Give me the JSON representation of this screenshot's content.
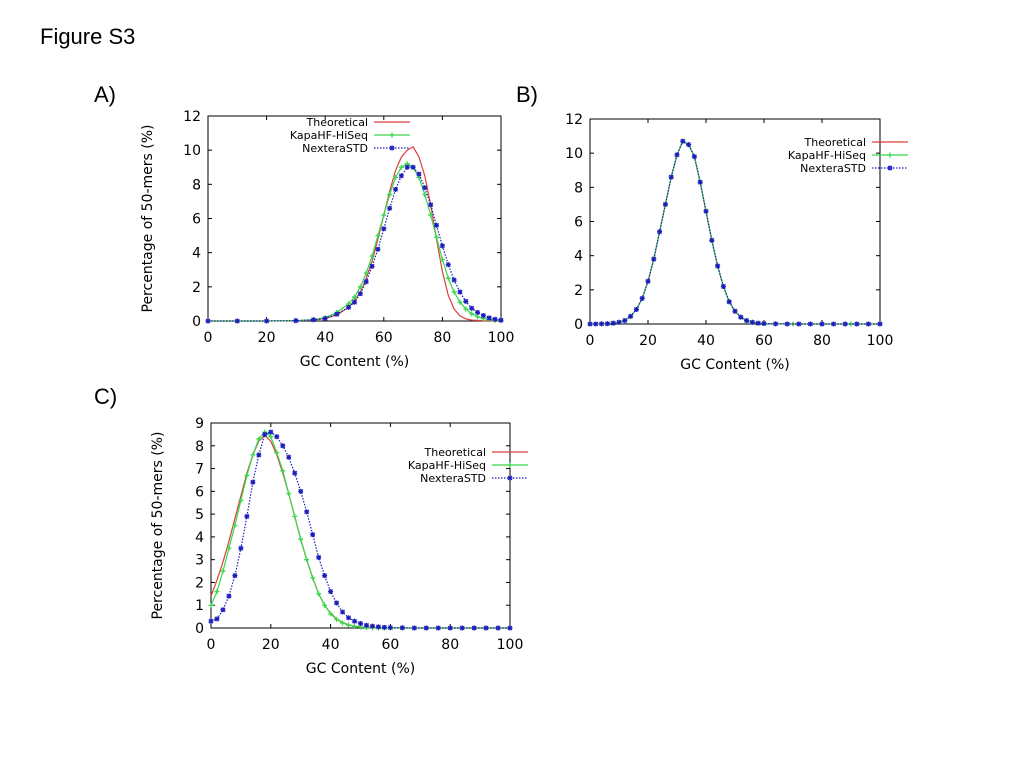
{
  "figure": {
    "title": "Figure S3",
    "panels": [
      "A)",
      "B)",
      "C)"
    ]
  },
  "colors": {
    "theoretical": "#d9403a",
    "kapa": "#37d84a",
    "nextera": "#1d1dbd"
  },
  "chart_data": [
    {
      "type": "line",
      "panel": "A)",
      "xlabel": "GC Content (%)",
      "ylabel": "Percentage of 50-mers (%)",
      "xlim": [
        0,
        100
      ],
      "ylim": [
        0,
        12
      ],
      "xticks": [
        "0",
        "20",
        "40",
        "60",
        "80",
        "100"
      ],
      "yticks": [
        "0",
        "2",
        "4",
        "6",
        "8",
        "10",
        "12"
      ],
      "legend": [
        "Theoretical",
        "KapaHF-HiSeq",
        "NexteraSTD"
      ],
      "series": [
        {
          "name": "Theoretical",
          "x": [
            0,
            10,
            20,
            30,
            36,
            40,
            44,
            48,
            50,
            52,
            54,
            56,
            58,
            60,
            62,
            64,
            66,
            68,
            70,
            72,
            74,
            76,
            78,
            80,
            82,
            84,
            86,
            88,
            90,
            94,
            100
          ],
          "y": [
            0,
            0,
            0,
            0.02,
            0.06,
            0.15,
            0.35,
            0.8,
            1.2,
            1.7,
            2.5,
            3.5,
            4.8,
            6.2,
            7.6,
            8.8,
            9.6,
            10.0,
            10.2,
            9.6,
            8.5,
            6.8,
            4.8,
            2.9,
            1.5,
            0.7,
            0.3,
            0.12,
            0.05,
            0.02,
            0
          ]
        },
        {
          "name": "KapaHF-HiSeq",
          "x": [
            0,
            10,
            20,
            30,
            36,
            40,
            44,
            48,
            50,
            52,
            54,
            56,
            58,
            60,
            62,
            64,
            66,
            68,
            70,
            72,
            74,
            76,
            78,
            80,
            82,
            84,
            86,
            88,
            90,
            92,
            94,
            96,
            98,
            100
          ],
          "y": [
            0,
            0,
            0,
            0.02,
            0.08,
            0.2,
            0.5,
            1.0,
            1.4,
            2.0,
            2.8,
            3.8,
            5.0,
            6.2,
            7.4,
            8.4,
            9.0,
            9.2,
            9.0,
            8.4,
            7.4,
            6.2,
            4.9,
            3.6,
            2.5,
            1.7,
            1.1,
            0.7,
            0.42,
            0.25,
            0.14,
            0.08,
            0.04,
            0.02
          ]
        },
        {
          "name": "NexteraSTD",
          "x": [
            0,
            10,
            20,
            30,
            36,
            40,
            44,
            48,
            50,
            52,
            54,
            56,
            58,
            60,
            62,
            64,
            66,
            68,
            70,
            72,
            74,
            76,
            78,
            80,
            82,
            84,
            86,
            88,
            90,
            92,
            94,
            96,
            98,
            100
          ],
          "y": [
            0,
            0,
            0,
            0.02,
            0.07,
            0.15,
            0.4,
            0.8,
            1.1,
            1.6,
            2.3,
            3.2,
            4.2,
            5.4,
            6.6,
            7.7,
            8.5,
            9.0,
            9.0,
            8.6,
            7.8,
            6.8,
            5.6,
            4.4,
            3.3,
            2.4,
            1.7,
            1.15,
            0.75,
            0.5,
            0.32,
            0.18,
            0.1,
            0.05
          ]
        }
      ]
    },
    {
      "type": "line",
      "panel": "B)",
      "xlabel": "GC Content (%)",
      "ylabel": "",
      "xlim": [
        0,
        100
      ],
      "ylim": [
        0,
        12
      ],
      "xticks": [
        "0",
        "20",
        "40",
        "60",
        "80",
        "100"
      ],
      "yticks": [
        "0",
        "2",
        "4",
        "6",
        "8",
        "10",
        "12"
      ],
      "legend": [
        "Theoretical",
        "KapaHF-HiSeq",
        "NexteraSTD"
      ],
      "series": [
        {
          "name": "Theoretical",
          "x": [
            0,
            4,
            8,
            10,
            12,
            14,
            16,
            18,
            20,
            22,
            24,
            26,
            28,
            30,
            32,
            34,
            36,
            38,
            40,
            42,
            44,
            46,
            48,
            50,
            52,
            54,
            56,
            60,
            70,
            80,
            90,
            100
          ],
          "y": [
            0,
            0.01,
            0.05,
            0.1,
            0.2,
            0.45,
            0.85,
            1.5,
            2.5,
            3.8,
            5.4,
            7.0,
            8.6,
            9.9,
            10.7,
            10.5,
            9.8,
            8.3,
            6.6,
            4.9,
            3.4,
            2.2,
            1.3,
            0.75,
            0.4,
            0.2,
            0.1,
            0.03,
            0,
            0,
            0,
            0
          ]
        },
        {
          "name": "KapaHF-HiSeq",
          "x": [
            0,
            4,
            8,
            10,
            12,
            14,
            16,
            18,
            20,
            22,
            24,
            26,
            28,
            30,
            32,
            34,
            36,
            38,
            40,
            42,
            44,
            46,
            48,
            50,
            52,
            54,
            56,
            60,
            70,
            80,
            90,
            100
          ],
          "y": [
            0,
            0.01,
            0.05,
            0.1,
            0.2,
            0.45,
            0.85,
            1.5,
            2.5,
            3.8,
            5.4,
            7.0,
            8.6,
            9.9,
            10.7,
            10.5,
            9.8,
            8.3,
            6.6,
            4.9,
            3.4,
            2.2,
            1.3,
            0.75,
            0.4,
            0.2,
            0.1,
            0.03,
            0,
            0,
            0,
            0
          ]
        },
        {
          "name": "NexteraSTD",
          "x": [
            0,
            2,
            4,
            6,
            8,
            10,
            12,
            14,
            16,
            18,
            20,
            22,
            24,
            26,
            28,
            30,
            32,
            34,
            36,
            38,
            40,
            42,
            44,
            46,
            48,
            50,
            52,
            54,
            56,
            58,
            60,
            64,
            68,
            72,
            76,
            80,
            84,
            88,
            92,
            96,
            100
          ],
          "y": [
            0,
            0,
            0.01,
            0.02,
            0.05,
            0.1,
            0.2,
            0.45,
            0.85,
            1.5,
            2.5,
            3.8,
            5.4,
            7.0,
            8.6,
            9.9,
            10.7,
            10.5,
            9.8,
            8.3,
            6.6,
            4.9,
            3.4,
            2.2,
            1.3,
            0.75,
            0.4,
            0.2,
            0.1,
            0.05,
            0.03,
            0.01,
            0,
            0,
            0,
            0,
            0,
            0,
            0,
            0,
            0
          ]
        }
      ]
    },
    {
      "type": "line",
      "panel": "C)",
      "xlabel": "GC Content (%)",
      "ylabel": "Percentage of 50-mers (%)",
      "xlim": [
        0,
        100
      ],
      "ylim": [
        0,
        9
      ],
      "xticks": [
        "0",
        "20",
        "40",
        "60",
        "80",
        "100"
      ],
      "yticks": [
        "0",
        "1",
        "2",
        "3",
        "4",
        "5",
        "6",
        "7",
        "8",
        "9"
      ],
      "legend": [
        "Theoretical",
        "KapaHF-HiSeq",
        "NexteraSTD"
      ],
      "series": [
        {
          "name": "Theoretical",
          "x": [
            0,
            2,
            4,
            6,
            8,
            10,
            12,
            14,
            16,
            18,
            20,
            22,
            24,
            26,
            28,
            30,
            32,
            34,
            36,
            38,
            40,
            42,
            44,
            46,
            48,
            50,
            55,
            60,
            70,
            80,
            90,
            100
          ],
          "y": [
            1.4,
            2.1,
            2.9,
            3.8,
            4.8,
            5.8,
            6.8,
            7.6,
            8.2,
            8.45,
            8.2,
            7.6,
            6.8,
            5.9,
            4.9,
            3.9,
            3.0,
            2.2,
            1.5,
            1.0,
            0.65,
            0.4,
            0.24,
            0.14,
            0.08,
            0.05,
            0.02,
            0,
            0,
            0,
            0,
            0
          ]
        },
        {
          "name": "KapaHF-HiSeq",
          "x": [
            0,
            2,
            4,
            6,
            8,
            10,
            12,
            14,
            16,
            18,
            20,
            22,
            24,
            26,
            28,
            30,
            32,
            34,
            36,
            38,
            40,
            42,
            44,
            46,
            48,
            50,
            52,
            54,
            56,
            58,
            60,
            64,
            68,
            72,
            76,
            80,
            84,
            88,
            92,
            96,
            100
          ],
          "y": [
            1.0,
            1.6,
            2.5,
            3.5,
            4.5,
            5.6,
            6.7,
            7.6,
            8.3,
            8.6,
            8.4,
            7.7,
            6.9,
            5.9,
            4.9,
            3.9,
            3.0,
            2.2,
            1.5,
            1.0,
            0.62,
            0.38,
            0.22,
            0.13,
            0.07,
            0.04,
            0.02,
            0.01,
            0,
            0,
            0,
            0,
            0,
            0,
            0,
            0,
            0,
            0,
            0,
            0,
            0
          ]
        },
        {
          "name": "NexteraSTD",
          "x": [
            0,
            2,
            4,
            6,
            8,
            10,
            12,
            14,
            16,
            18,
            20,
            22,
            24,
            26,
            28,
            30,
            32,
            34,
            36,
            38,
            40,
            42,
            44,
            46,
            48,
            50,
            52,
            54,
            56,
            58,
            60,
            64,
            68,
            72,
            76,
            80,
            84,
            88,
            92,
            96,
            100
          ],
          "y": [
            0.3,
            0.4,
            0.8,
            1.4,
            2.3,
            3.5,
            4.9,
            6.4,
            7.6,
            8.5,
            8.6,
            8.4,
            8.0,
            7.5,
            6.8,
            6.0,
            5.1,
            4.1,
            3.1,
            2.3,
            1.6,
            1.1,
            0.7,
            0.45,
            0.3,
            0.2,
            0.12,
            0.08,
            0.05,
            0.03,
            0.02,
            0.01,
            0,
            0,
            0,
            0,
            0,
            0,
            0,
            0,
            0
          ]
        }
      ]
    }
  ]
}
